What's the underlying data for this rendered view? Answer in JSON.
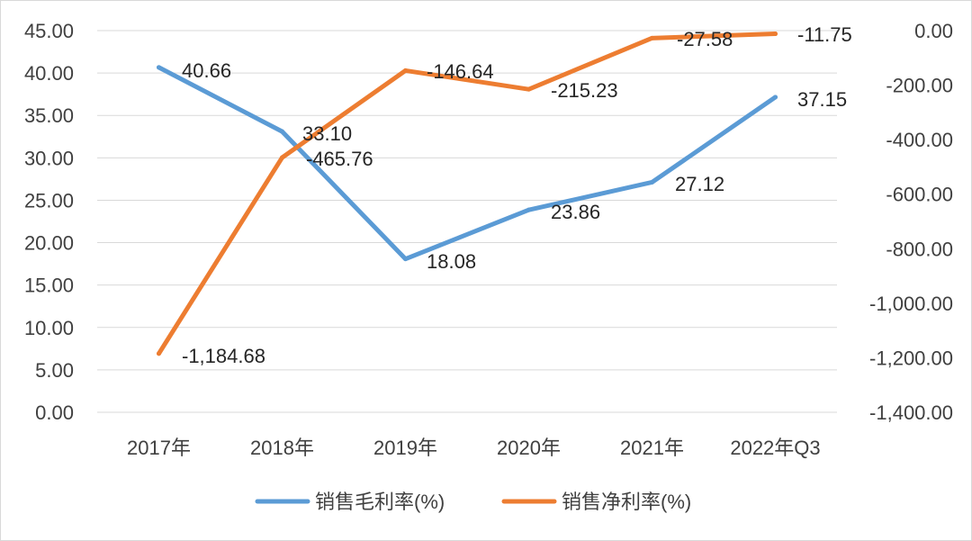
{
  "chart_data": {
    "type": "line",
    "categories": [
      "2017年",
      "2018年",
      "2019年",
      "2020年",
      "2021年",
      "2022年Q3"
    ],
    "series": [
      {
        "name": "销售毛利率(%)",
        "axis": "left",
        "color": "#5B9BD5",
        "values": [
          40.66,
          33.1,
          18.08,
          23.86,
          27.12,
          37.15
        ],
        "labels": [
          "40.66",
          "33.10",
          "18.08",
          "23.86",
          "27.12",
          "37.15"
        ]
      },
      {
        "name": "销售净利率(%)",
        "axis": "right",
        "color": "#ED7D31",
        "values": [
          -1184.68,
          -465.76,
          -146.64,
          -215.23,
          -27.58,
          -11.75
        ],
        "labels": [
          "-1,184.68",
          "-465.76",
          "-146.64",
          "-215.23",
          "-27.58",
          "-11.75"
        ]
      }
    ],
    "y_left": {
      "ylim": [
        0,
        45
      ],
      "ticks": [
        "0.00",
        "5.00",
        "10.00",
        "15.00",
        "20.00",
        "25.00",
        "30.00",
        "35.00",
        "40.00",
        "45.00"
      ]
    },
    "y_right": {
      "ylim": [
        -1400,
        0
      ],
      "ticks": [
        "-1,400.00",
        "-1,200.00",
        "-1,000.00",
        "-800.00",
        "-600.00",
        "-400.00",
        "-200.00",
        "0.00"
      ]
    },
    "title": "",
    "xlabel": "",
    "ylabel": "",
    "grid": true,
    "legend_position": "bottom",
    "border_color": "#D9D9D9",
    "grid_color": "#D9D9D9"
  }
}
